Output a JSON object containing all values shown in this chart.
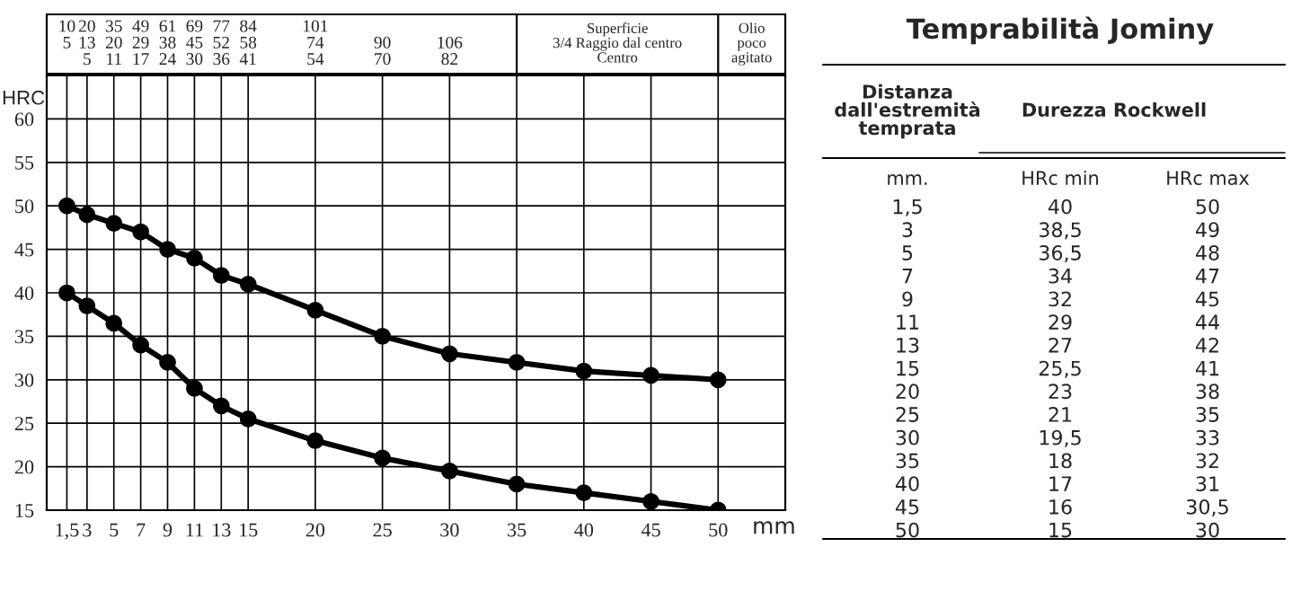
{
  "chart_data": [
    {
      "type": "line",
      "xlabel": "mm",
      "ylabel": "HRC",
      "x": [
        1.5,
        3,
        5,
        7,
        9,
        11,
        13,
        15,
        20,
        25,
        30,
        35,
        40,
        45,
        50
      ],
      "series": [
        {
          "color": "#000000",
          "values": [
            40,
            38.5,
            36.5,
            34,
            32,
            29,
            27,
            25.5,
            23,
            21,
            19.5,
            18,
            17,
            16,
            15
          ]
        },
        {
          "color": "#000000",
          "values": [
            50,
            49,
            48,
            47,
            45,
            44,
            42,
            41,
            38,
            35,
            33,
            32,
            31,
            30.5,
            30
          ]
        }
      ],
      "xlim": [
        0,
        55
      ],
      "ylim": [
        15,
        65
      ],
      "xticks": [
        {
          "value": 1.5,
          "label": "1,5"
        },
        3,
        5,
        7,
        9,
        11,
        13,
        15,
        20,
        25,
        30,
        35,
        40,
        45,
        50
      ],
      "yticks": [
        15,
        20,
        25,
        30,
        35,
        40,
        45,
        50,
        55,
        60
      ],
      "grid": true,
      "marker": "circle",
      "line_style": "solid"
    },
    {
      "type": "other",
      "annotations": [
        "10\n5\n ",
        "20\n13\n5",
        "35\n20\n11",
        "49\n29\n17",
        "61\n38\n24",
        "69\n45\n30",
        "77\n52\n36",
        "84\n58\n41",
        "101\n74\n54",
        " \n90\n70",
        " \n106\n82",
        "Superficie\n3/4 Raggio dal centro\nCentro",
        "Olio\npoco\nagitato"
      ]
    },
    {
      "type": "other",
      "title": "Temprabilità Jominy",
      "annotations": [
        "Distanza\ndall'estremità\ntemprata",
        "Durezza Rockwell",
        "mm.",
        "HRc min",
        "HRc max",
        "1,5",
        "40",
        "50",
        "3",
        "38,5",
        "49",
        "5",
        "36,5",
        "48",
        "7",
        "34",
        "47",
        "9",
        "32",
        "45",
        "11",
        "29",
        "44",
        "13",
        "27",
        "42",
        "15",
        "25,5",
        "41",
        "20",
        "23",
        "38",
        "25",
        "21",
        "35",
        "30",
        "19,5",
        "33",
        "35",
        "18",
        "32",
        "40",
        "17",
        "31",
        "45",
        "16",
        "30,5",
        "50",
        "15",
        "30"
      ]
    }
  ]
}
